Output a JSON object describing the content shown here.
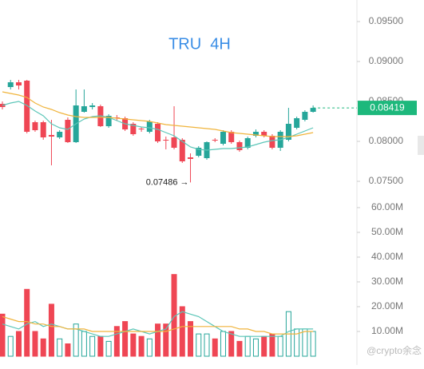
{
  "chart_data": [
    {
      "type": "candlestick",
      "title": "TRU  4H",
      "open": [
        0.0847,
        0.0868,
        0.0874,
        0.0876,
        0.0824,
        0.0824,
        0.0808,
        0.0805,
        0.0827,
        0.0799,
        0.0837,
        0.0843,
        0.0844,
        0.0819,
        0.083,
        0.0829,
        0.0822,
        0.0816,
        0.0812,
        0.0822,
        0.0802,
        0.0805,
        0.0802,
        0.078,
        0.0782,
        0.0779,
        0.0802,
        0.0797,
        0.0812,
        0.0799,
        0.0792,
        0.0807,
        0.0812,
        0.0807,
        0.0792,
        0.0802,
        0.0817,
        0.0827,
        0.0837
      ],
      "high": [
        0.085,
        0.0877,
        0.0877,
        0.0877,
        0.0826,
        0.0826,
        0.0827,
        0.0814,
        0.083,
        0.0865,
        0.0865,
        0.0848,
        0.0846,
        0.0834,
        0.0833,
        0.0831,
        0.0824,
        0.0818,
        0.0827,
        0.0824,
        0.0806,
        0.0844,
        0.0804,
        0.0785,
        0.0794,
        0.08,
        0.0804,
        0.0814,
        0.0814,
        0.0801,
        0.0806,
        0.0815,
        0.0814,
        0.0809,
        0.0814,
        0.0842,
        0.0831,
        0.0839,
        0.0845
      ],
      "low": [
        0.084,
        0.0865,
        0.0865,
        0.081,
        0.0812,
        0.0802,
        0.077,
        0.0803,
        0.0798,
        0.0798,
        0.0836,
        0.084,
        0.0818,
        0.0817,
        0.0826,
        0.0813,
        0.0807,
        0.0812,
        0.081,
        0.0798,
        0.079,
        0.079,
        0.0773,
        0.07486,
        0.078,
        0.0777,
        0.0799,
        0.0795,
        0.0797,
        0.0787,
        0.079,
        0.0805,
        0.0805,
        0.079,
        0.0788,
        0.08,
        0.0815,
        0.0825,
        0.0836
      ],
      "close": [
        0.0843,
        0.0874,
        0.087,
        0.0812,
        0.0814,
        0.0805,
        0.0806,
        0.0812,
        0.0799,
        0.0845,
        0.0844,
        0.0845,
        0.0819,
        0.0832,
        0.0829,
        0.0815,
        0.0809,
        0.0815,
        0.0825,
        0.08,
        0.0801,
        0.0792,
        0.0775,
        0.0778,
        0.0792,
        0.0799,
        0.0801,
        0.0812,
        0.0799,
        0.0789,
        0.0804,
        0.0812,
        0.0807,
        0.0792,
        0.0812,
        0.0822,
        0.0829,
        0.0837,
        0.08419
      ],
      "up_color": "#26a69a",
      "down_color": "#ef4654",
      "lines": [
        {
          "color": "#5cc6b8",
          "values": [
            0.0845,
            0.0848,
            0.085,
            0.0845,
            0.0838,
            0.0832,
            0.0822,
            0.0817,
            0.0815,
            0.0822,
            0.0828,
            0.0831,
            0.0832,
            0.083,
            0.0826,
            0.0822,
            0.082,
            0.0818,
            0.0817,
            0.0815,
            0.0811,
            0.0807,
            0.08,
            0.0793,
            0.079,
            0.0789,
            0.079,
            0.0791,
            0.0791,
            0.0792,
            0.0793,
            0.0796,
            0.0799,
            0.0801,
            0.0802,
            0.0805,
            0.0809,
            0.0813,
            0.0817
          ]
        },
        {
          "color": "#f0b43c",
          "values": [
            0.0862,
            0.086,
            0.0858,
            0.0855,
            0.0848,
            0.0843,
            0.084,
            0.0836,
            0.0833,
            0.0831,
            0.083,
            0.083,
            0.083,
            0.083,
            0.0829,
            0.0828,
            0.0827,
            0.0826,
            0.0825,
            0.0823,
            0.0821,
            0.082,
            0.0819,
            0.0818,
            0.0817,
            0.0816,
            0.0815,
            0.0813,
            0.0811,
            0.081,
            0.0809,
            0.0808,
            0.0807,
            0.0806,
            0.0806,
            0.0806,
            0.0807,
            0.0809,
            0.0811
          ]
        }
      ],
      "ylim": [
        0.0727,
        0.0977
      ],
      "yticks": [
        {
          "value": 0.075,
          "label": "0.07500"
        },
        {
          "value": 0.08,
          "label": "0.08000"
        },
        {
          "value": 0.085,
          "label": "0.08500"
        },
        {
          "value": 0.09,
          "label": "0.09000"
        },
        {
          "value": 0.095,
          "label": "0.09500"
        }
      ],
      "last_label": "0.08419",
      "last_color": "#1db87c",
      "low_label": "0.07486 →"
    },
    {
      "type": "volume",
      "values": [
        17,
        8,
        10,
        27,
        10,
        7,
        21,
        7,
        5,
        13,
        10,
        8,
        8,
        6,
        12,
        14,
        9,
        8,
        7,
        13,
        13,
        33,
        20,
        14,
        9,
        9,
        7,
        10,
        10,
        6,
        8,
        7,
        8,
        9,
        8,
        18,
        11,
        11,
        10
      ],
      "lines": [
        {
          "color": "#5cc6b8",
          "values": [
            13,
            12,
            11,
            13,
            14,
            12,
            13,
            12,
            11,
            11,
            10,
            9,
            8,
            8,
            9,
            10,
            11,
            10,
            9,
            10,
            11,
            16,
            18,
            17,
            16,
            14,
            12,
            10,
            9,
            8,
            8,
            8,
            8,
            8,
            8,
            10,
            11,
            11,
            11
          ]
        },
        {
          "color": "#f0b43c",
          "values": [
            16,
            15,
            14,
            14,
            13,
            13,
            12,
            12,
            11,
            11,
            11,
            10,
            10,
            10,
            10,
            10,
            10,
            10,
            10,
            10,
            10,
            11,
            12,
            12,
            12,
            12,
            12,
            12,
            12,
            11,
            11,
            10,
            10,
            9,
            9,
            9,
            9,
            10,
            10
          ]
        }
      ],
      "ylim": [
        0,
        63.2
      ],
      "yticks": [
        {
          "value": 10,
          "label": "10.00M"
        },
        {
          "value": 20,
          "label": "20.00M"
        },
        {
          "value": 30,
          "label": "30.00M"
        },
        {
          "value": 40,
          "label": "40.00M"
        },
        {
          "value": 50,
          "label": "50.00M"
        },
        {
          "value": 60,
          "label": "60.00M"
        }
      ],
      "watermark": "@crypto余念"
    }
  ]
}
